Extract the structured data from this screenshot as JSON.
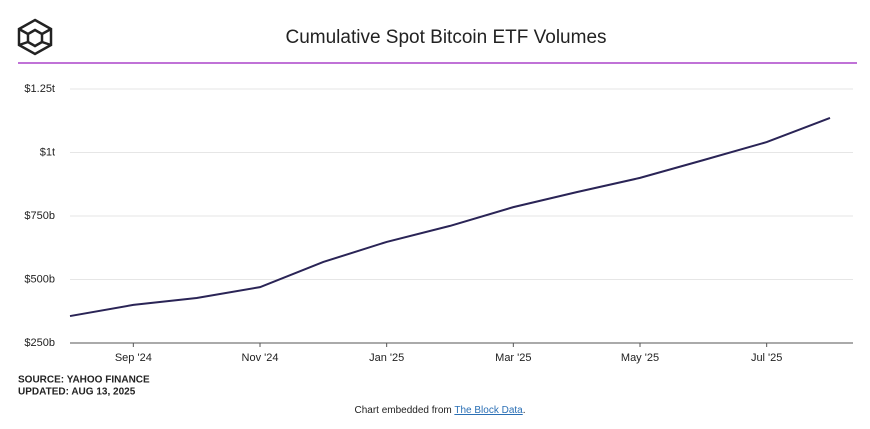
{
  "chart_data": {
    "type": "line",
    "title": "Cumulative Spot Bitcoin ETF Volumes",
    "x": [
      "2024-08",
      "2024-09",
      "2024-10",
      "2024-11",
      "2024-12",
      "2025-01",
      "2025-02",
      "2025-03",
      "2025-04",
      "2025-05",
      "2025-06",
      "2025-07",
      "2025-08"
    ],
    "series": [
      {
        "name": "Cumulative volume",
        "color": "#2a2456",
        "values": [
          356,
          400,
          427,
          470,
          569,
          648,
          711,
          785,
          844,
          900,
          970,
          1041,
          1136
        ]
      }
    ],
    "xlim": [
      "2024-08",
      "2025-08"
    ],
    "xticks": [
      {
        "value": "2024-09",
        "label": "Sep '24"
      },
      {
        "value": "2024-11",
        "label": "Nov '24"
      },
      {
        "value": "2025-01",
        "label": "Jan '25"
      },
      {
        "value": "2025-03",
        "label": "Mar '25"
      },
      {
        "value": "2025-05",
        "label": "May '25"
      },
      {
        "value": "2025-07",
        "label": "Jul '25"
      }
    ],
    "ylim": [
      250,
      1250
    ],
    "yticks": [
      {
        "value": 250,
        "label": "$250b"
      },
      {
        "value": 500,
        "label": "$500b"
      },
      {
        "value": 750,
        "label": "$750b"
      },
      {
        "value": 1000,
        "label": "$1t"
      },
      {
        "value": 1250,
        "label": "$1.25t"
      }
    ],
    "grid": true,
    "source": "SOURCE: YAHOO FINANCE",
    "updated": "UPDATED: AUG 13, 2025",
    "embed_text": "Chart embedded from",
    "embed_link": "The Block Data",
    "embed_end": "."
  }
}
